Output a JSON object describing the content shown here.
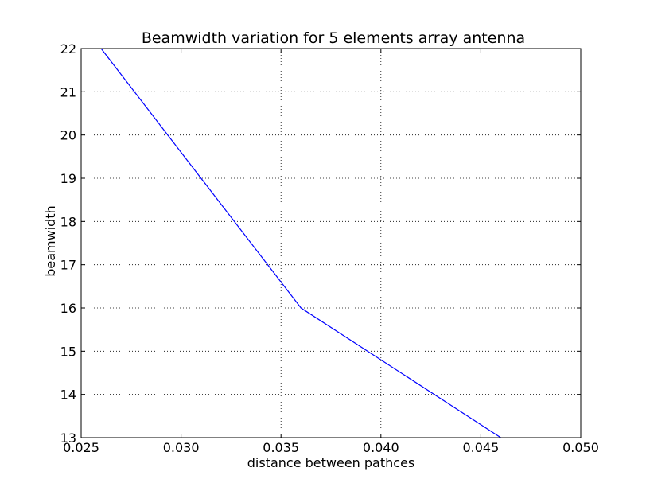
{
  "chart_data": {
    "type": "line",
    "title": "Beamwidth variation for 5 elements array antenna",
    "xlabel": "distance between pathces",
    "ylabel": "beamwidth",
    "xlim": [
      0.025,
      0.05
    ],
    "ylim": [
      13,
      22
    ],
    "xticks": [
      "0.025",
      "0.030",
      "0.035",
      "0.040",
      "0.045",
      "0.050"
    ],
    "yticks": [
      "13",
      "14",
      "15",
      "16",
      "17",
      "18",
      "19",
      "20",
      "21",
      "22"
    ],
    "grid": true,
    "series": [
      {
        "x": [
          0.026,
          0.036,
          0.046
        ],
        "y": [
          22,
          16,
          13
        ],
        "color": "#0000ff"
      }
    ]
  }
}
